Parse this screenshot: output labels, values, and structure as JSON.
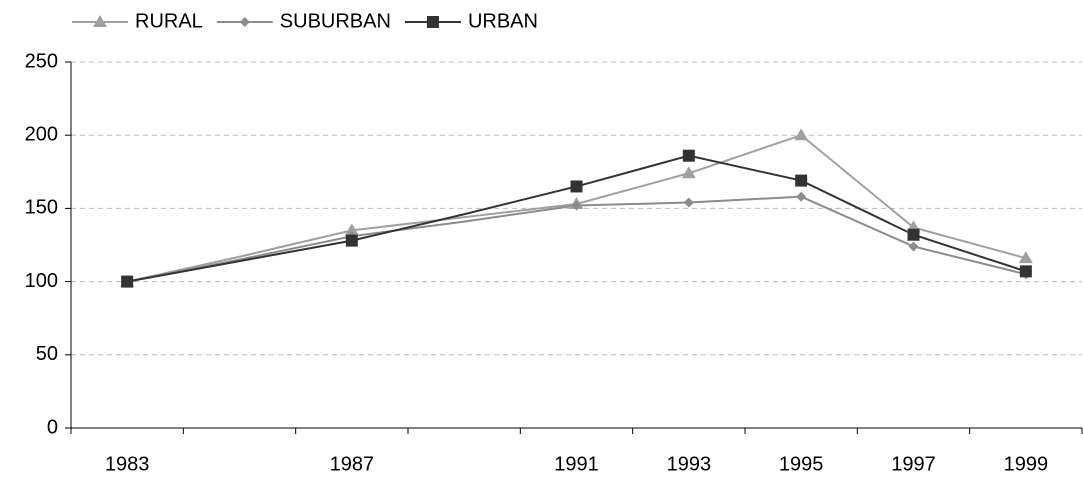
{
  "chart_data": {
    "type": "line",
    "categories": [
      "1983",
      null,
      "1987",
      null,
      "1991",
      "1993",
      "1995",
      "1997",
      "1999"
    ],
    "series": [
      {
        "name": "RURAL",
        "color": "#a0a0a0",
        "marker": "triangle",
        "values": [
          100,
          117,
          135,
          144,
          153,
          174,
          200,
          137,
          116
        ]
      },
      {
        "name": "SUBURBAN",
        "color": "#8c8c8c",
        "marker": "diamond",
        "values": [
          100,
          115,
          131,
          141,
          152,
          154,
          158,
          124,
          105
        ]
      },
      {
        "name": "URBAN",
        "color": "#333333",
        "marker": "square",
        "values": [
          100,
          114,
          128,
          146,
          165,
          186,
          169,
          132,
          107
        ]
      }
    ],
    "ylim": [
      0,
      250
    ],
    "yticks": [
      0,
      50,
      100,
      150,
      200,
      250
    ],
    "grid": true,
    "legend": "top-left"
  }
}
